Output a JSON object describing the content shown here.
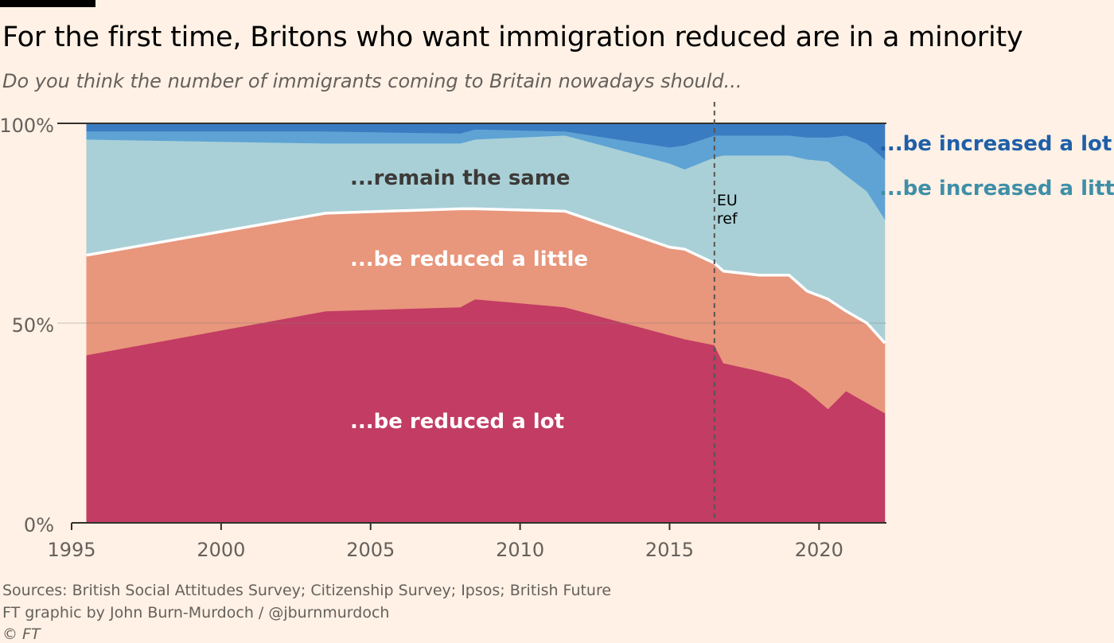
{
  "header": {
    "title": "For the first time, Britons who want immigration reduced are in a minority",
    "subtitle": "Do you think the number of immigrants coming to Britain nowadays should..."
  },
  "footer": {
    "sources": "Sources: British Social Attitudes Survey; Citizenship Survey; Ipsos; British Future",
    "credit": "FT graphic by John Burn-Murdoch / @jburnmurdoch",
    "copyright": "© FT"
  },
  "colors": {
    "background": "#fff1e5",
    "reduced_lot": "#c23c63",
    "reduced_little": "#e8967c",
    "remain_same": "#a9d0d7",
    "increased_little": "#5ea3d4",
    "increased_lot": "#3a7cc1",
    "label_increased_lot": "#1f5fa8",
    "label_increased_little": "#3e8fa8"
  },
  "chart_data": {
    "type": "area",
    "stacked": true,
    "title": "For the first time, Britons who want immigration reduced are in a minority",
    "subtitle": "Do you think the number of immigrants coming to Britain nowadays should...",
    "xlim": [
      1995,
      2022.2
    ],
    "ylim": [
      0,
      100
    ],
    "x_ticks": [
      "1995",
      "2000",
      "2005",
      "2010",
      "2015",
      "2020"
    ],
    "y_ticks": [
      "0%",
      "50%",
      "100%"
    ],
    "grid": true,
    "x": [
      1995.5,
      2003.5,
      2008.0,
      2008.5,
      2011.5,
      2015.0,
      2015.5,
      2016.5,
      2016.8,
      2018.0,
      2019.0,
      2019.6,
      2020.3,
      2020.9,
      2021.6,
      2022.2
    ],
    "series": [
      {
        "name": "...be reduced a lot",
        "values": [
          42,
          53,
          54,
          56,
          54,
          47,
          46,
          44.5,
          40,
          38,
          36,
          33,
          28.5,
          33,
          30,
          27.5
        ]
      },
      {
        "name": "...be reduced a little",
        "values": [
          25,
          24.5,
          24.6,
          22.6,
          24,
          22,
          22.5,
          20.5,
          23,
          24,
          26,
          25,
          27.5,
          20,
          20,
          17.5
        ]
      },
      {
        "name": "...remain the same",
        "values": [
          29,
          17.5,
          16.4,
          17.4,
          19,
          21,
          20,
          26.5,
          29,
          30,
          30,
          33,
          34.5,
          34,
          33,
          31
        ]
      },
      {
        "name": "...be increased a little",
        "values": [
          2,
          3,
          2.5,
          2.5,
          1,
          4,
          6,
          5.5,
          5,
          5,
          5,
          5.5,
          6,
          10,
          12,
          15
        ]
      },
      {
        "name": "...be increased a lot",
        "values": [
          2,
          2,
          2.5,
          1.5,
          2,
          6,
          5.5,
          3,
          3,
          3,
          3,
          3.5,
          3.5,
          3,
          5,
          9
        ]
      }
    ],
    "annotations": [
      {
        "text": "EU",
        "x": 2016.5
      },
      {
        "text": "ref",
        "x": 2016.5
      }
    ],
    "area_labels": {
      "reduced_lot": "...be reduced a lot",
      "reduced_little": "...be reduced a little",
      "remain_same": "...remain the same",
      "increased_little": "...be increased a little",
      "increased_lot": "...be increased a lot"
    }
  }
}
